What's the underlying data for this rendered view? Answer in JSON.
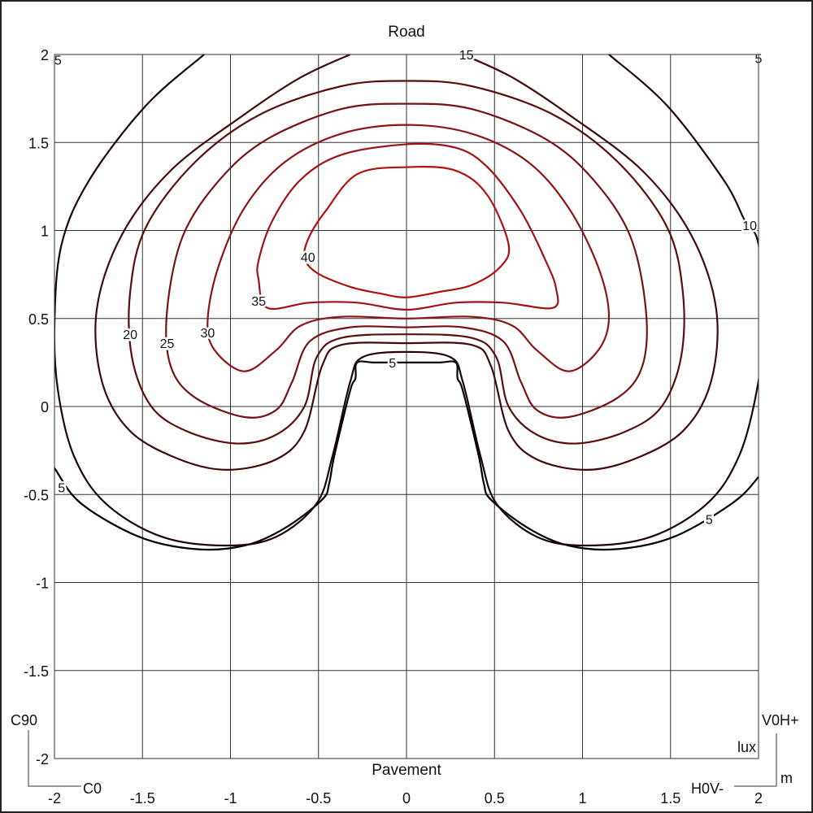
{
  "chart_data": {
    "type": "contour",
    "title": "Road",
    "xlabel": "Pavement",
    "unit_label": "lux",
    "axis_unit": "m",
    "corner_labels": {
      "top_left": "C90",
      "bottom_left": "C0",
      "top_right": "V0H+",
      "bottom_right": "H0V-"
    },
    "xlim": [
      -2,
      2
    ],
    "ylim": [
      -2,
      2
    ],
    "xticks": [
      "-2",
      "-1.5",
      "-1",
      "-0.5",
      "0",
      "0.5",
      "1",
      "1.5",
      "2"
    ],
    "yticks": [
      "2",
      "1.5",
      "1",
      "0.5",
      "0",
      "-0.5",
      "-1",
      "-1.5",
      "-2"
    ],
    "grid": true,
    "contours": [
      {
        "level": 5,
        "color": "#000000",
        "closed": false,
        "points": [
          [
            -2.1,
            -0.2
          ],
          [
            -2,
            -0.35
          ],
          [
            -1.85,
            -0.55
          ],
          [
            -1.52,
            -0.74
          ],
          [
            -1.2,
            -0.81
          ],
          [
            -0.92,
            -0.79
          ],
          [
            -0.69,
            -0.69
          ],
          [
            -0.48,
            -0.53
          ],
          [
            -0.44,
            -0.44
          ],
          [
            -0.41,
            -0.28
          ],
          [
            -0.32,
            0.09
          ],
          [
            -0.29,
            0.16
          ],
          [
            -0.28,
            0.25
          ],
          [
            -0.18,
            0.25
          ],
          [
            0,
            0.25
          ],
          [
            0.18,
            0.25
          ],
          [
            0.28,
            0.25
          ],
          [
            0.29,
            0.16
          ],
          [
            0.32,
            0.09
          ],
          [
            0.41,
            -0.28
          ],
          [
            0.44,
            -0.44
          ],
          [
            0.48,
            -0.53
          ],
          [
            0.69,
            -0.69
          ],
          [
            0.92,
            -0.79
          ],
          [
            1.2,
            -0.81
          ],
          [
            1.52,
            -0.74
          ],
          [
            1.85,
            -0.55
          ],
          [
            2,
            -0.4
          ],
          [
            2.1,
            -0.25
          ]
        ]
      },
      {
        "level": 10,
        "color": "#1e0505",
        "closed": false,
        "points": [
          [
            -1.15,
            2
          ],
          [
            -1.48,
            1.71
          ],
          [
            -1.8,
            1.29
          ],
          [
            -1.96,
            0.92
          ],
          [
            -2.0,
            0.46
          ],
          [
            -1.98,
            0.09
          ],
          [
            -1.89,
            -0.28
          ],
          [
            -1.71,
            -0.55
          ],
          [
            -1.39,
            -0.74
          ],
          [
            -1.02,
            -0.79
          ],
          [
            -0.74,
            -0.74
          ],
          [
            -0.51,
            -0.55
          ],
          [
            -0.42,
            -0.28
          ],
          [
            -0.32,
            0.14
          ],
          [
            -0.25,
            0.28
          ],
          [
            0,
            0.31
          ],
          [
            0.25,
            0.28
          ],
          [
            0.32,
            0.14
          ],
          [
            0.42,
            -0.28
          ],
          [
            0.51,
            -0.55
          ],
          [
            0.74,
            -0.74
          ],
          [
            1.02,
            -0.79
          ],
          [
            1.39,
            -0.74
          ],
          [
            1.71,
            -0.55
          ],
          [
            1.89,
            -0.28
          ],
          [
            1.99,
            0.09
          ],
          [
            2.03,
            0.46
          ],
          [
            2.0,
            0.92
          ],
          [
            1.92,
            1.06
          ],
          [
            1.8,
            1.29
          ],
          [
            1.48,
            1.71
          ],
          [
            1.15,
            2
          ]
        ]
      },
      {
        "level": 15,
        "color": "#400a0a",
        "closed": false,
        "points": [
          [
            -0.32,
            2
          ],
          [
            -0.6,
            1.87
          ],
          [
            -0.92,
            1.66
          ],
          [
            -1.34,
            1.34
          ],
          [
            -1.62,
            0.97
          ],
          [
            -1.76,
            0.55
          ],
          [
            -1.73,
            0.14
          ],
          [
            -1.57,
            -0.14
          ],
          [
            -1.29,
            -0.3
          ],
          [
            -1.02,
            -0.36
          ],
          [
            -0.74,
            -0.3
          ],
          [
            -0.58,
            -0.14
          ],
          [
            -0.48,
            0.23
          ],
          [
            -0.37,
            0.35
          ],
          [
            0,
            0.36
          ],
          [
            0.37,
            0.35
          ],
          [
            0.48,
            0.23
          ],
          [
            0.58,
            -0.14
          ],
          [
            0.74,
            -0.3
          ],
          [
            1.02,
            -0.36
          ],
          [
            1.29,
            -0.3
          ],
          [
            1.57,
            -0.14
          ],
          [
            1.73,
            0.14
          ],
          [
            1.76,
            0.55
          ],
          [
            1.62,
            0.97
          ],
          [
            1.34,
            1.34
          ],
          [
            0.92,
            1.66
          ],
          [
            0.6,
            1.87
          ],
          [
            0.32,
            2
          ]
        ]
      },
      {
        "level": 20,
        "color": "#5a0e0e",
        "closed": true,
        "points": [
          [
            0,
            1.85
          ],
          [
            -0.37,
            1.82
          ],
          [
            -0.83,
            1.66
          ],
          [
            -1.2,
            1.39
          ],
          [
            -1.48,
            1.02
          ],
          [
            -1.57,
            0.65
          ],
          [
            -1.56,
            0.28
          ],
          [
            -1.45,
            0
          ],
          [
            -1.25,
            -0.14
          ],
          [
            -0.97,
            -0.21
          ],
          [
            -0.74,
            -0.16
          ],
          [
            -0.58,
            0
          ],
          [
            -0.51,
            0.28
          ],
          [
            -0.37,
            0.39
          ],
          [
            0,
            0.41
          ],
          [
            0.37,
            0.39
          ],
          [
            0.51,
            0.28
          ],
          [
            0.58,
            0
          ],
          [
            0.74,
            -0.16
          ],
          [
            0.97,
            -0.21
          ],
          [
            1.25,
            -0.14
          ],
          [
            1.45,
            0
          ],
          [
            1.56,
            0.28
          ],
          [
            1.57,
            0.65
          ],
          [
            1.48,
            1.02
          ],
          [
            1.2,
            1.39
          ],
          [
            0.83,
            1.66
          ],
          [
            0.37,
            1.82
          ]
        ]
      },
      {
        "level": 25,
        "color": "#741313",
        "closed": true,
        "points": [
          [
            0,
            1.72
          ],
          [
            -0.37,
            1.69
          ],
          [
            -0.79,
            1.52
          ],
          [
            -1.06,
            1.29
          ],
          [
            -1.27,
            0.97
          ],
          [
            -1.36,
            0.55
          ],
          [
            -1.34,
            0.23
          ],
          [
            -1.2,
            0.05
          ],
          [
            -0.92,
            -0.06
          ],
          [
            -0.74,
            -0.02
          ],
          [
            -0.65,
            0.14
          ],
          [
            -0.55,
            0.37
          ],
          [
            -0.32,
            0.45
          ],
          [
            0,
            0.45
          ],
          [
            0.32,
            0.45
          ],
          [
            0.55,
            0.37
          ],
          [
            0.65,
            0.14
          ],
          [
            0.74,
            -0.02
          ],
          [
            0.92,
            -0.06
          ],
          [
            1.2,
            0.05
          ],
          [
            1.34,
            0.23
          ],
          [
            1.36,
            0.55
          ],
          [
            1.27,
            0.97
          ],
          [
            1.06,
            1.29
          ],
          [
            0.79,
            1.52
          ],
          [
            0.37,
            1.69
          ]
        ]
      },
      {
        "level": 30,
        "color": "#8c1616",
        "closed": true,
        "points": [
          [
            0,
            1.6
          ],
          [
            -0.37,
            1.55
          ],
          [
            -0.69,
            1.39
          ],
          [
            -0.92,
            1.13
          ],
          [
            -1.07,
            0.79
          ],
          [
            -1.13,
            0.49
          ],
          [
            -1.09,
            0.32
          ],
          [
            -0.92,
            0.2
          ],
          [
            -0.74,
            0.32
          ],
          [
            -0.6,
            0.46
          ],
          [
            -0.37,
            0.51
          ],
          [
            0,
            0.5
          ],
          [
            0.37,
            0.51
          ],
          [
            0.6,
            0.46
          ],
          [
            0.74,
            0.32
          ],
          [
            0.92,
            0.2
          ],
          [
            1.09,
            0.32
          ],
          [
            1.15,
            0.51
          ],
          [
            1.09,
            0.79
          ],
          [
            0.92,
            1.13
          ],
          [
            0.69,
            1.39
          ],
          [
            0.37,
            1.55
          ]
        ]
      },
      {
        "level": 35,
        "color": "#9e1414",
        "closed": true,
        "points": [
          [
            0,
            1.49
          ],
          [
            -0.37,
            1.43
          ],
          [
            -0.6,
            1.29
          ],
          [
            -0.76,
            1.06
          ],
          [
            -0.84,
            0.83
          ],
          [
            -0.84,
            0.72
          ],
          [
            -0.79,
            0.56
          ],
          [
            -0.55,
            0.59
          ],
          [
            -0.28,
            0.59
          ],
          [
            0,
            0.55
          ],
          [
            0.28,
            0.59
          ],
          [
            0.55,
            0.59
          ],
          [
            0.83,
            0.56
          ],
          [
            0.85,
            0.67
          ],
          [
            0.79,
            0.83
          ],
          [
            0.65,
            1.11
          ],
          [
            0.46,
            1.36
          ],
          [
            0.28,
            1.47
          ]
        ]
      },
      {
        "level": 40,
        "color": "#b01010",
        "closed": true,
        "points": [
          [
            0,
            1.36
          ],
          [
            -0.28,
            1.32
          ],
          [
            -0.46,
            1.11
          ],
          [
            -0.55,
            0.97
          ],
          [
            -0.58,
            0.85
          ],
          [
            -0.51,
            0.76
          ],
          [
            -0.32,
            0.68
          ],
          [
            -0.14,
            0.64
          ],
          [
            0,
            0.62
          ],
          [
            0.18,
            0.65
          ],
          [
            0.37,
            0.69
          ],
          [
            0.53,
            0.79
          ],
          [
            0.58,
            0.92
          ],
          [
            0.46,
            1.2
          ],
          [
            0.28,
            1.34
          ]
        ]
      }
    ],
    "contour_labels": [
      {
        "text": "5",
        "x": -0.08,
        "y": 0.25
      },
      {
        "text": "5",
        "x": -1.96,
        "y": -0.46
      },
      {
        "text": "5",
        "x": 1.72,
        "y": -0.64
      },
      {
        "text": "5",
        "x": -1.98,
        "y": 1.97
      },
      {
        "text": "5",
        "x": 2.0,
        "y": 1.98
      },
      {
        "text": "10",
        "x": 1.95,
        "y": 1.03
      },
      {
        "text": "15",
        "x": 0.34,
        "y": 2.0
      },
      {
        "text": "20",
        "x": -1.57,
        "y": 0.41
      },
      {
        "text": "25",
        "x": -1.36,
        "y": 0.36
      },
      {
        "text": "30",
        "x": -1.13,
        "y": 0.42
      },
      {
        "text": "35",
        "x": -0.84,
        "y": 0.6
      },
      {
        "text": "40",
        "x": -0.56,
        "y": 0.85
      }
    ]
  }
}
